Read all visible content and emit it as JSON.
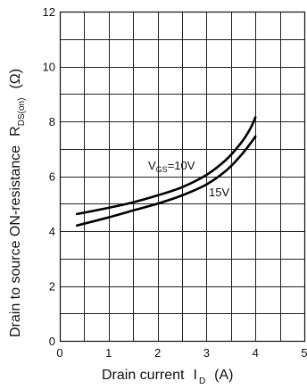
{
  "chart_data": {
    "type": "line",
    "xlabel": {
      "main": "Drain current",
      "symbol": "I",
      "sub": "D",
      "unit": "(A)"
    },
    "ylabel": {
      "main": "Drain to source ON-resistance",
      "symbol": "R",
      "sub": "DS(on)",
      "unit": "(Ω)"
    },
    "xlim": [
      0,
      5
    ],
    "ylim": [
      0,
      12
    ],
    "x_ticks": [
      "0",
      "1",
      "2",
      "3",
      "4",
      "5"
    ],
    "y_ticks": [
      "0",
      "2",
      "4",
      "6",
      "8",
      "10",
      "12"
    ],
    "x_grid_step": 0.5,
    "y_grid_step": 1,
    "grid": true,
    "series": [
      {
        "name": "V_GS=10V",
        "x": [
          0.35,
          1.0,
          1.5,
          2.0,
          2.5,
          3.0,
          3.4,
          3.7,
          3.9,
          4.0
        ],
        "y": [
          4.62,
          4.85,
          5.05,
          5.3,
          5.6,
          6.05,
          6.6,
          7.2,
          7.75,
          8.15
        ]
      },
      {
        "name": "15V",
        "x": [
          0.35,
          1.0,
          1.5,
          2.0,
          2.5,
          3.0,
          3.4,
          3.7,
          3.9,
          4.0
        ],
        "y": [
          4.2,
          4.5,
          4.75,
          5.0,
          5.3,
          5.7,
          6.2,
          6.75,
          7.2,
          7.45
        ]
      }
    ],
    "annotations": [
      {
        "main": "V",
        "sub": "GS",
        "rest": "=10V"
      },
      {
        "main": "15V"
      }
    ]
  }
}
